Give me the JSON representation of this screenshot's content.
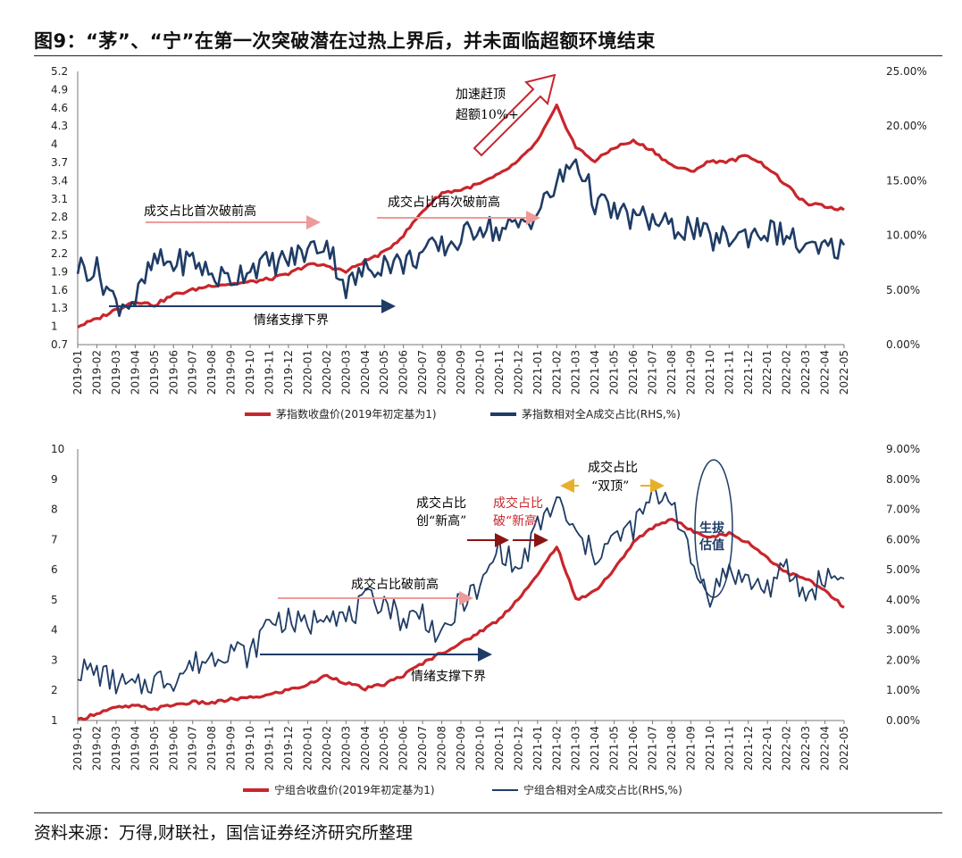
{
  "header": {
    "title": "图9：“茅”、“宁”在第一次突破潜在过热上界后，并未面临超额环境结束"
  },
  "footer": {
    "source": "资料来源：万得,财联社，国信证券经济研究所整理"
  },
  "colors": {
    "red": "#c8262c",
    "blue": "#1f3c66",
    "pink": "#ee9a9a",
    "darkred": "#8b1414",
    "gold": "#e8b02a",
    "annRed": "#c8262c"
  },
  "chart_data": [
    {
      "type": "line",
      "categories": [
        "2019-01",
        "2019-02",
        "2019-03",
        "2019-04",
        "2019-05",
        "2019-06",
        "2019-07",
        "2019-08",
        "2019-09",
        "2019-10",
        "2019-11",
        "2019-12",
        "2020-01",
        "2020-02",
        "2020-03",
        "2020-04",
        "2020-05",
        "2020-06",
        "2020-07",
        "2020-08",
        "2020-09",
        "2020-10",
        "2020-11",
        "2020-12",
        "2021-01",
        "2021-02",
        "2021-03",
        "2021-04",
        "2021-05",
        "2021-06",
        "2021-07",
        "2021-08",
        "2021-09",
        "2021-10",
        "2021-11",
        "2021-12",
        "2022-01",
        "2022-02",
        "2022-03",
        "2022-04",
        "2022-05"
      ],
      "yticks_left": [
        "5.2",
        "4.9",
        "4.6",
        "4.3",
        "4",
        "3.7",
        "3.4",
        "3.1",
        "2.8",
        "2.5",
        "2.2",
        "1.9",
        "1.6",
        "1.3",
        "1",
        "0.7"
      ],
      "yticks_right": [
        "25.00%",
        "20.00%",
        "15.00%",
        "10.00%",
        "5.00%",
        "0.00%"
      ],
      "ylim_left": [
        0.7,
        5.2
      ],
      "ylim_right": [
        0,
        25
      ],
      "series": [
        {
          "name": "茅指数收盘价(2019年初定基为1)",
          "axis": "left",
          "color": "#c8262c",
          "values": [
            1.0,
            1.12,
            1.28,
            1.42,
            1.35,
            1.52,
            1.6,
            1.68,
            1.7,
            1.73,
            1.78,
            1.86,
            2.02,
            2.0,
            1.9,
            2.08,
            2.22,
            2.5,
            2.9,
            3.2,
            3.25,
            3.35,
            3.5,
            3.72,
            4.05,
            4.62,
            3.95,
            3.72,
            3.95,
            4.05,
            3.9,
            3.65,
            3.55,
            3.72,
            3.72,
            3.82,
            3.62,
            3.32,
            3.02,
            2.98,
            2.92
          ]
        },
        {
          "name": "茅指数相对全A成交占比(RHS,%)",
          "axis": "right",
          "color": "#1f3c66",
          "values": [
            7.2,
            6.8,
            3.8,
            4.0,
            7.6,
            7.4,
            7.8,
            6.3,
            6.0,
            7.2,
            7.4,
            7.8,
            8.6,
            9.4,
            5.2,
            6.8,
            7.6,
            7.4,
            8.4,
            8.9,
            9.6,
            11.1,
            10.3,
            10.9,
            12.1,
            14.6,
            17.0,
            13.1,
            12.1,
            11.6,
            11.4,
            10.6,
            10.8,
            9.6,
            9.8,
            10.1,
            10.4,
            10.0,
            8.6,
            8.6,
            9.1
          ]
        }
      ],
      "annotations": [
        "加速赶顶",
        "超额10%+",
        "成交占比首次破前高",
        "成交占比再次破前高",
        "情绪支撑下界"
      ]
    },
    {
      "type": "line",
      "categories": [
        "2019-01",
        "2019-02",
        "2019-03",
        "2019-04",
        "2019-05",
        "2019-06",
        "2019-07",
        "2019-08",
        "2019-09",
        "2019-10",
        "2019-11",
        "2019-12",
        "2020-01",
        "2020-02",
        "2020-03",
        "2020-04",
        "2020-05",
        "2020-06",
        "2020-07",
        "2020-08",
        "2020-09",
        "2020-10",
        "2020-11",
        "2020-12",
        "2021-01",
        "2021-02",
        "2021-03",
        "2021-04",
        "2021-05",
        "2021-06",
        "2021-07",
        "2021-08",
        "2021-09",
        "2021-10",
        "2021-11",
        "2021-12",
        "2022-01",
        "2022-02",
        "2022-03",
        "2022-04",
        "2022-05"
      ],
      "yticks_left": [
        "10",
        "9",
        "8",
        "7",
        "6",
        "5",
        "4",
        "3",
        "2",
        "1"
      ],
      "yticks_right": [
        "9.00%",
        "8.00%",
        "7.00%",
        "6.00%",
        "5.00%",
        "4.00%",
        "3.00%",
        "2.00%",
        "1.00%",
        "0.00%"
      ],
      "ylim_left": [
        1,
        10
      ],
      "ylim_right": [
        0,
        9
      ],
      "series": [
        {
          "name": "宁组合收盘价(2019年初定基为1)",
          "axis": "left",
          "color": "#c8262c",
          "values": [
            1.0,
            1.25,
            1.42,
            1.48,
            1.38,
            1.52,
            1.6,
            1.58,
            1.7,
            1.75,
            1.85,
            2.02,
            2.18,
            2.5,
            2.25,
            2.05,
            2.2,
            2.5,
            2.9,
            3.25,
            3.55,
            3.95,
            4.35,
            5.05,
            5.8,
            6.8,
            5.0,
            5.3,
            6.0,
            6.9,
            7.4,
            7.7,
            7.3,
            7.1,
            7.2,
            6.9,
            6.4,
            5.9,
            5.7,
            5.3,
            4.75
          ]
        },
        {
          "name": "宁组合相对全A成交占比(RHS,%)",
          "axis": "right",
          "color": "#1f3c66",
          "values": [
            1.7,
            1.6,
            1.25,
            1.05,
            1.35,
            1.4,
            1.85,
            2.1,
            2.45,
            2.1,
            3.4,
            3.3,
            3.1,
            3.8,
            3.3,
            3.9,
            4.0,
            3.3,
            3.6,
            2.6,
            4.0,
            4.3,
            5.8,
            4.9,
            6.4,
            7.3,
            6.1,
            5.5,
            6.0,
            6.4,
            7.4,
            7.5,
            5.2,
            4.2,
            5.0,
            4.6,
            4.4,
            5.0,
            4.1,
            4.8,
            4.7
          ]
        }
      ],
      "annotations": [
        "成交占比",
        "创“新高”",
        "成交占比",
        "破“新高",
        "成交占比",
        "“双顶”",
        "生拔",
        "估值",
        "成交占比破前高",
        "情绪支撑下界"
      ]
    }
  ]
}
